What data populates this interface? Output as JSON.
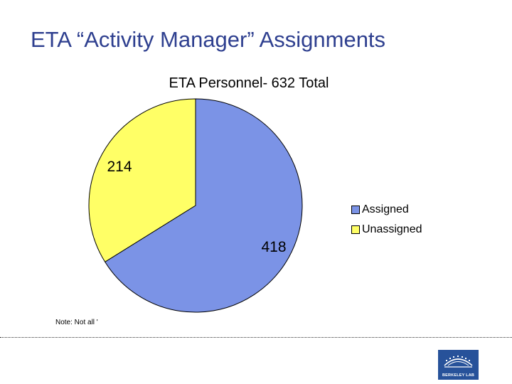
{
  "slide": {
    "title": "ETA “Activity Manager” Assignments",
    "note": "Note: Not all '"
  },
  "logo": {
    "text": "BERKELEY LAB"
  },
  "chart_data": {
    "type": "pie",
    "title": "ETA Personnel- 632 Total",
    "slices": [
      {
        "label": "Assigned",
        "value": 418,
        "color": "#7b93e6"
      },
      {
        "label": "Unassigned",
        "value": 214,
        "color": "#ffff66"
      }
    ],
    "legend_position": "right"
  }
}
